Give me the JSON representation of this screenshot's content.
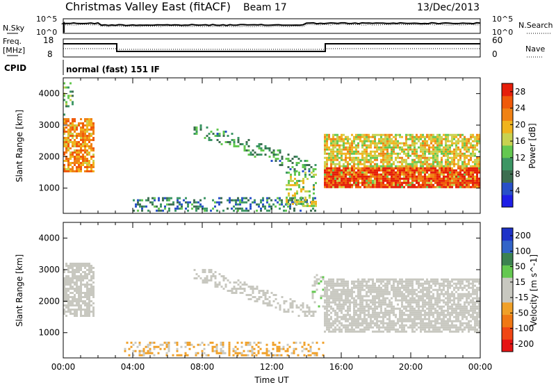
{
  "header": {
    "title": "Christmas Valley East (fitACF)",
    "beam": "Beam 17",
    "date": "13/Dec/2013"
  },
  "strips": {
    "nsky_label": "N.Sky",
    "nsearch_label": "N.Search",
    "nsky_ticks": [
      "10^5",
      "10^0"
    ],
    "nsearch_ticks": [
      "10^5",
      "10^0"
    ],
    "freq_label_1": "Freq.",
    "freq_label_2": "[MHz]",
    "freq_ticks": [
      "18",
      "8"
    ],
    "nave_label": "Nave",
    "nave_ticks": [
      "60",
      "0"
    ],
    "cpid_label": "CPID",
    "cpid_value": "normal (fast) 151 IF"
  },
  "colors": {
    "power": [
      "#1e1ee6",
      "#2850c8",
      "#3c6e50",
      "#3c9664",
      "#64c850",
      "#c8d250",
      "#f0b41e",
      "#f08214",
      "#f05a0a",
      "#e61e0a"
    ],
    "velocity": [
      "#1e32c8",
      "#3264c8",
      "#3c8250",
      "#64c850",
      "#c8c8c0",
      "#c8c8c0",
      "#f0a028",
      "#f07814",
      "#f04614",
      "#e61414"
    ]
  },
  "chart_data": [
    {
      "type": "heatmap",
      "name": "power",
      "xlabel": "",
      "ylabel": "Slant Range [km]",
      "x_ticks": [
        "00:00",
        "04:00",
        "08:00",
        "12:00",
        "16:00",
        "20:00",
        "00:00"
      ],
      "y_ticks": [
        1000,
        2000,
        3000,
        4000
      ],
      "ylim": [
        200,
        4500
      ],
      "colorbar_label": "Power [dB]",
      "colorbar_ticks": [
        4,
        8,
        12,
        16,
        20,
        24,
        28
      ],
      "clim": [
        0,
        30
      ],
      "regions": [
        {
          "name": "early-evening-echo",
          "t_start": 0.0,
          "t_end": 1.7,
          "r_low": 1500,
          "r_high": 3200,
          "power": 22
        },
        {
          "name": "early-high-range",
          "t_start": 0.0,
          "t_end": 0.5,
          "r_low": 3300,
          "r_high": 4400,
          "power": 12
        },
        {
          "name": "ground-scatter-low",
          "t_start": 4.0,
          "t_end": 14.5,
          "r_low": 250,
          "r_high": 700,
          "power": 8
        },
        {
          "name": "descending-band",
          "t_start": 7.5,
          "t_end": 14.5,
          "r_low": 1500,
          "r_high": 3000,
          "power": 10
        },
        {
          "name": "midnight-patch",
          "t_start": 12.8,
          "t_end": 14.5,
          "r_low": 400,
          "r_high": 1500,
          "power": 16
        },
        {
          "name": "morning-sector-main",
          "t_start": 15.0,
          "t_end": 24.0,
          "r_low": 1000,
          "r_high": 2700,
          "power": 18
        },
        {
          "name": "morning-sector-strong",
          "t_start": 15.0,
          "t_end": 24.0,
          "r_low": 1000,
          "r_high": 1600,
          "power": 28
        }
      ]
    },
    {
      "type": "heatmap",
      "name": "velocity",
      "xlabel": "Time UT",
      "ylabel": "Slant Range [km]",
      "x_ticks": [
        "00:00",
        "04:00",
        "08:00",
        "12:00",
        "16:00",
        "20:00",
        "00:00"
      ],
      "y_ticks": [
        1000,
        2000,
        3000,
        4000
      ],
      "ylim": [
        200,
        4500
      ],
      "colorbar_label": "Velocity [m s^-1]",
      "colorbar_ticks": [
        200,
        100,
        50,
        15,
        -15,
        -50,
        -100,
        -200
      ],
      "clim": [
        -250,
        250
      ],
      "regions": [
        {
          "name": "early-evening-echo",
          "t_start": 0.0,
          "t_end": 1.7,
          "r_low": 1500,
          "r_high": 3200,
          "velocity": 0
        },
        {
          "name": "ground-scatter-low",
          "t_start": 3.5,
          "t_end": 15.0,
          "r_low": 250,
          "r_high": 700,
          "velocity": -60
        },
        {
          "name": "descending-band",
          "t_start": 7.5,
          "t_end": 14.5,
          "r_low": 1500,
          "r_high": 3000,
          "velocity": 0
        },
        {
          "name": "green-streak",
          "t_start": 14.3,
          "t_end": 15.0,
          "r_low": 1800,
          "r_high": 2800,
          "velocity": 40
        },
        {
          "name": "morning-sector-main",
          "t_start": 15.0,
          "t_end": 24.0,
          "r_low": 1000,
          "r_high": 2700,
          "velocity": 0
        }
      ]
    }
  ]
}
